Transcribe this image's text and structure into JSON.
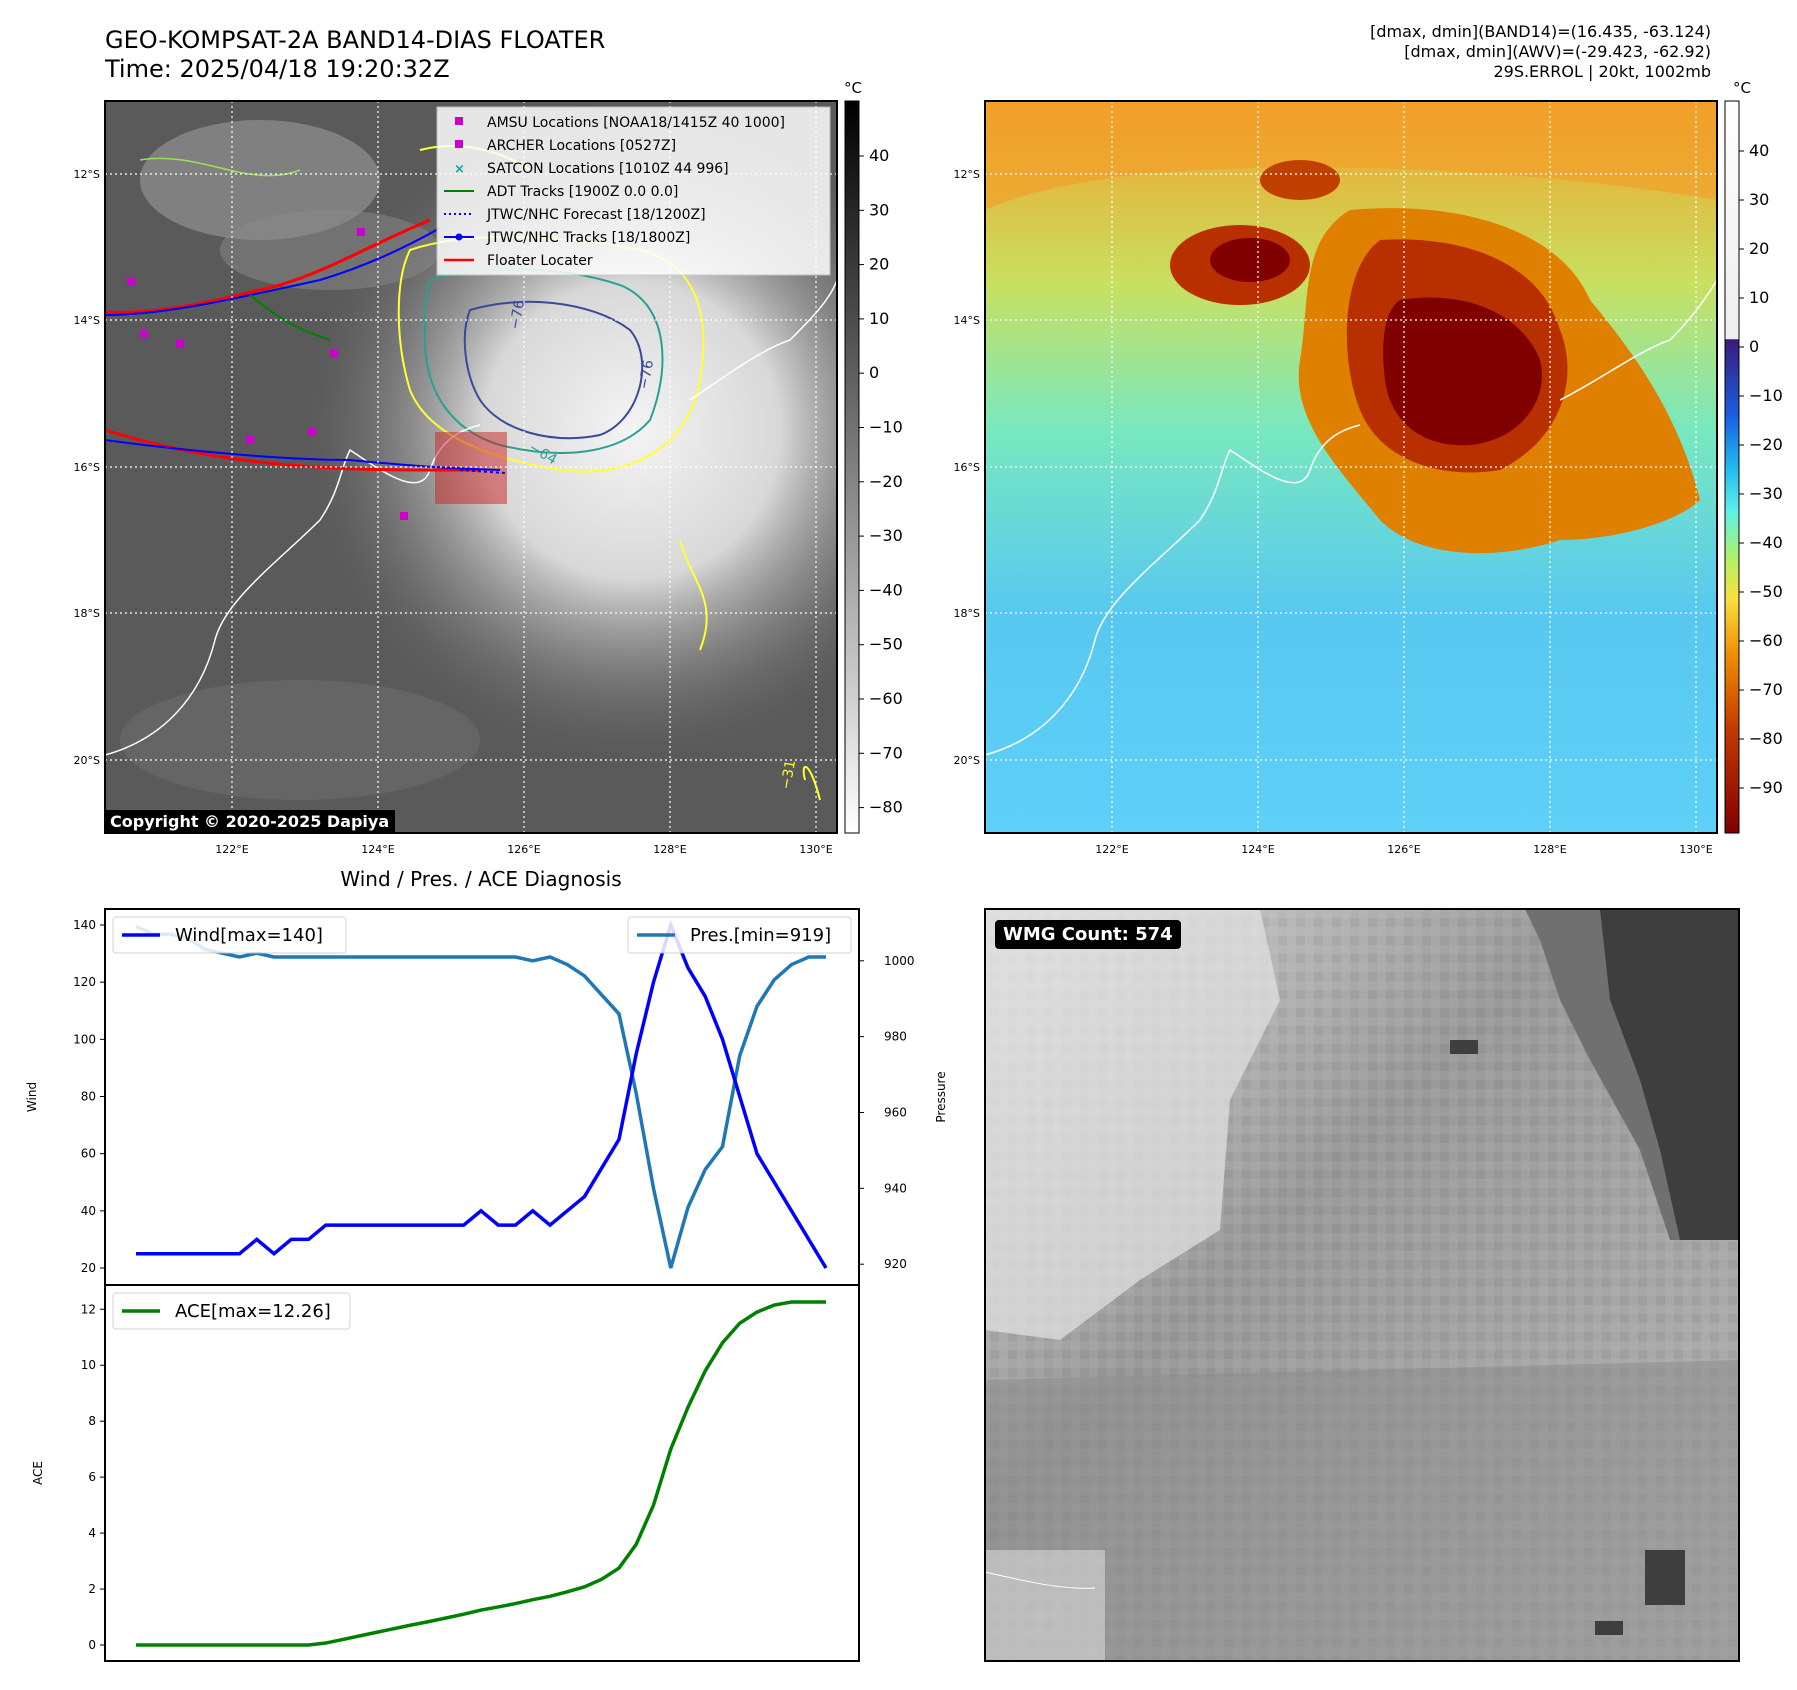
{
  "header": {
    "title_line1": "GEO-KOMPSAT-2A BAND14-DIAS FLOATER",
    "title_line2": "Time: 2025/04/18 19:20:32Z",
    "info_line1": "[dmax, dmin](BAND14)=(16.435, -63.124)",
    "info_line2": "[dmax, dmin](AWV)=(-29.423, -62.92)",
    "info_line3": "29S.ERROL | 20kt, 1002mb"
  },
  "colors": {
    "wind": "#0000ff",
    "pressure": "#1f77b4",
    "ace": "#008000",
    "amsu": "#cc00cc",
    "satcon": "#00aaaa",
    "adt": "#008000",
    "jtwc": "#0000ff",
    "floater": "#ff0000"
  },
  "map_panel_1": {
    "unit": "°C",
    "colorbar_ticks": [
      "40",
      "30",
      "20",
      "10",
      "0",
      "−10",
      "−20",
      "−30",
      "−40",
      "−50",
      "−60",
      "−70",
      "−80"
    ],
    "lat_labels": [
      "12°S",
      "14°S",
      "16°S",
      "18°S",
      "20°S"
    ],
    "lon_labels": [
      "122°E",
      "124°E",
      "126°E",
      "128°E",
      "130°E"
    ],
    "contour_labels": [
      "−76",
      "−76",
      "−64",
      "−31"
    ],
    "copyright": "Copyright © 2020-2025 Dapiya",
    "legend": [
      {
        "label": "AMSU Locations [NOAA18/1415Z 40 1000]",
        "icon": "square-marker"
      },
      {
        "label": "ARCHER Locations [0527Z]",
        "icon": "square-marker"
      },
      {
        "label": "SATCON Locations [1010Z 44 996]",
        "icon": "x-marker"
      },
      {
        "label": "ADT Tracks [1900Z 0.0 0.0]",
        "icon": "solid-line"
      },
      {
        "label": "JTWC/NHC Forecast [18/1200Z]",
        "icon": "dotted-line"
      },
      {
        "label": "JTWC/NHC Tracks [18/1800Z]",
        "icon": "line-dot"
      },
      {
        "label": "Floater Locater",
        "icon": "solid-line"
      }
    ]
  },
  "map_panel_2": {
    "unit": "°C",
    "colorbar_ticks": [
      "40",
      "30",
      "20",
      "10",
      "0",
      "−10",
      "−20",
      "−30",
      "−40",
      "−50",
      "−60",
      "−70",
      "−80",
      "−90"
    ],
    "lat_labels": [
      "12°S",
      "14°S",
      "16°S",
      "18°S",
      "20°S"
    ],
    "lon_labels": [
      "122°E",
      "124°E",
      "126°E",
      "128°E",
      "130°E"
    ]
  },
  "diagnosis": {
    "title": "Wind / Pres. / ACE Diagnosis",
    "wind_ylabel": "Wind",
    "pres_ylabel": "Pressure",
    "ace_ylabel": "ACE",
    "wind_legend": "Wind[max=140]",
    "pres_legend": "Pres.[min=919]",
    "ace_legend": "ACE[max=12.26]"
  },
  "wmg": {
    "label": "WMG Count: 574"
  },
  "chart_data": [
    {
      "type": "line",
      "title": "Wind / Pres. / ACE Diagnosis",
      "x": [
        0,
        1,
        2,
        3,
        4,
        5,
        6,
        7,
        8,
        9,
        10,
        11,
        12,
        13,
        14,
        15,
        16,
        17,
        18,
        19,
        20,
        21,
        22,
        23,
        24,
        25,
        26,
        27,
        28,
        29,
        30,
        31,
        32,
        33,
        34,
        35,
        36,
        37,
        38,
        39,
        40
      ],
      "series": [
        {
          "name": "Wind[max=140]",
          "axis": "left",
          "values": [
            25,
            25,
            25,
            25,
            25,
            25,
            25,
            30,
            25,
            30,
            30,
            35,
            35,
            35,
            35,
            35,
            35,
            35,
            35,
            35,
            40,
            35,
            35,
            40,
            35,
            40,
            45,
            55,
            65,
            95,
            120,
            140,
            125,
            115,
            100,
            80,
            60,
            50,
            40,
            30,
            20
          ]
        },
        {
          "name": "Pres.[min=919]",
          "axis": "right",
          "values": [
            1009,
            1007,
            1007,
            1006,
            1003,
            1002,
            1001,
            1002,
            1001,
            1001,
            1001,
            1001,
            1001,
            1001,
            1001,
            1001,
            1001,
            1001,
            1001,
            1001,
            1001,
            1001,
            1001,
            1000,
            1001,
            999,
            996,
            991,
            986,
            965,
            940,
            919,
            935,
            945,
            951,
            975,
            988,
            995,
            999,
            1001,
            1001
          ]
        }
      ],
      "ylim_left": [
        20,
        140
      ],
      "ylim_right": [
        919,
        1001
      ],
      "yticks_left": [
        20,
        40,
        60,
        80,
        100,
        120,
        140
      ],
      "yticks_right": [
        920,
        940,
        960,
        980,
        1000
      ],
      "ylabel_left": "Wind",
      "ylabel_right": "Pressure"
    },
    {
      "type": "line",
      "x": [
        0,
        1,
        2,
        3,
        4,
        5,
        6,
        7,
        8,
        9,
        10,
        11,
        12,
        13,
        14,
        15,
        16,
        17,
        18,
        19,
        20,
        21,
        22,
        23,
        24,
        25,
        26,
        27,
        28,
        29,
        30,
        31,
        32,
        33,
        34,
        35,
        36,
        37,
        38,
        39,
        40
      ],
      "series": [
        {
          "name": "ACE[max=12.26]",
          "values": [
            0,
            0,
            0,
            0,
            0,
            0,
            0,
            0,
            0,
            0,
            0,
            0.07,
            0.2,
            0.33,
            0.46,
            0.59,
            0.72,
            0.84,
            0.97,
            1.1,
            1.25,
            1.36,
            1.48,
            1.62,
            1.74,
            1.9,
            2.08,
            2.35,
            2.75,
            3.6,
            5,
            7,
            8.5,
            9.8,
            10.8,
            11.5,
            11.9,
            12.15,
            12.26,
            12.26,
            12.26
          ]
        }
      ],
      "ylim": [
        0,
        12.26
      ],
      "yticks": [
        0,
        2,
        4,
        6,
        8,
        10,
        12
      ],
      "ylabel": "ACE"
    }
  ]
}
